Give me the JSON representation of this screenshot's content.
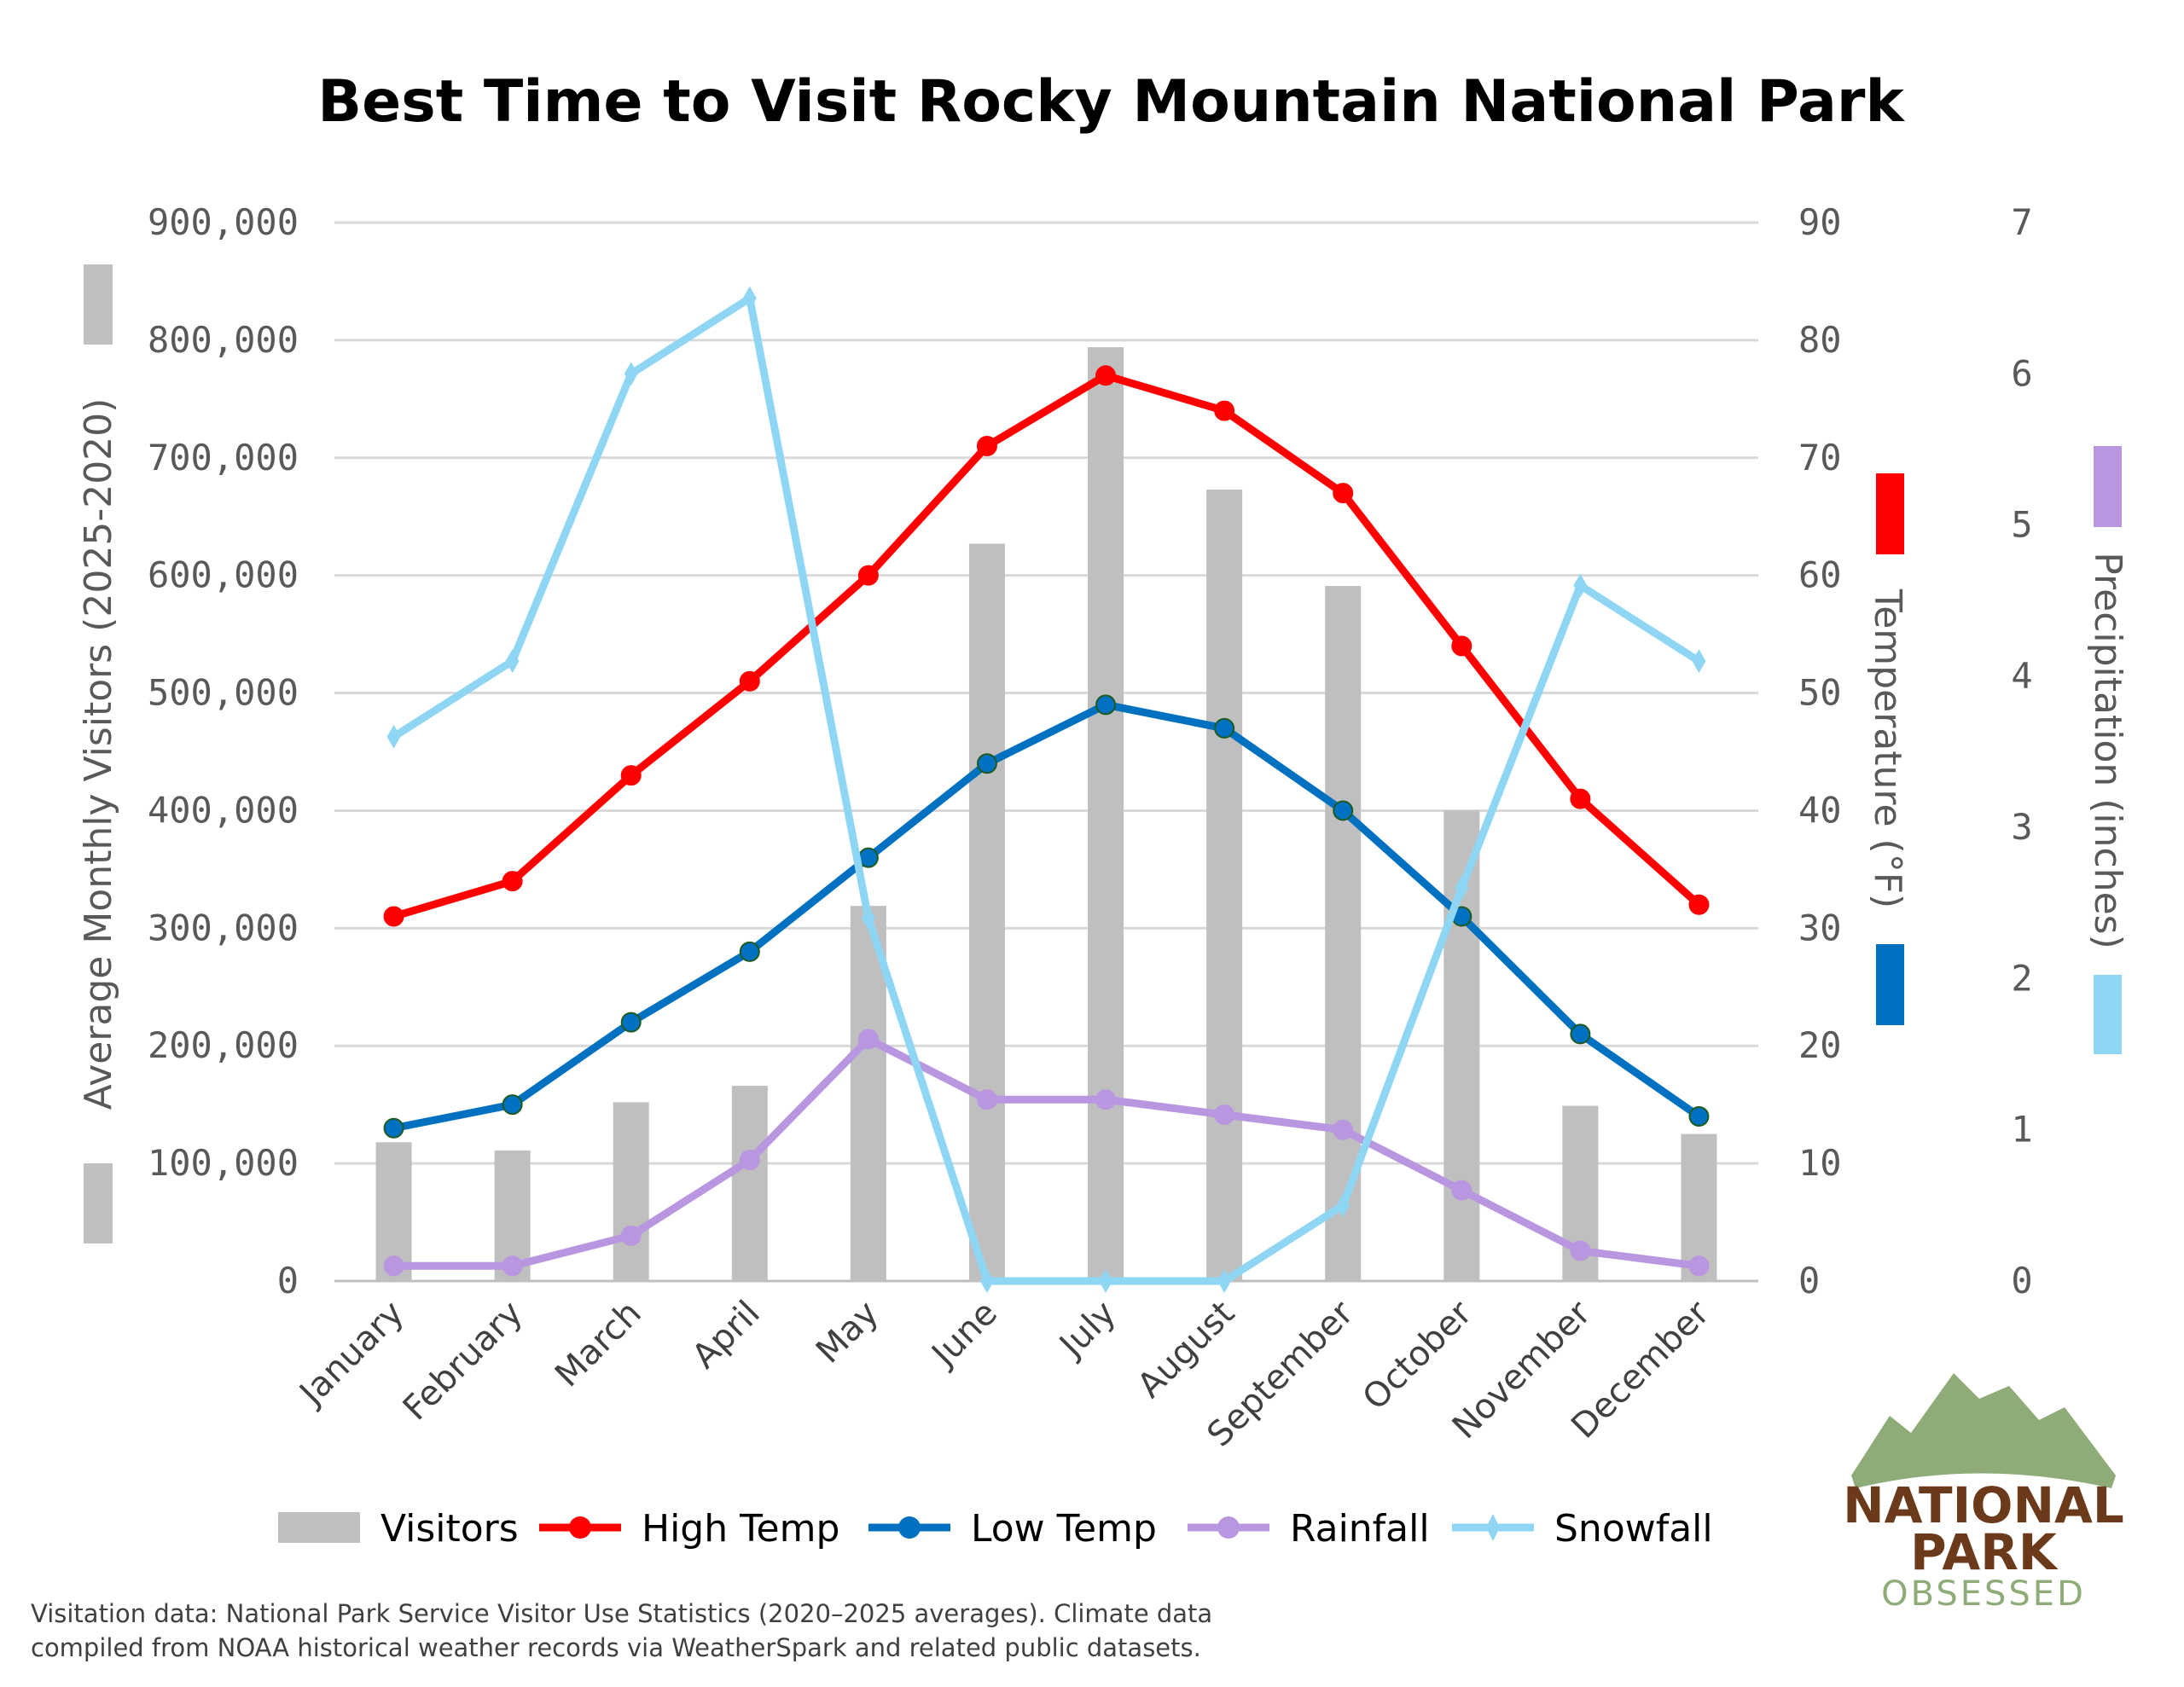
{
  "chart_data": {
    "type": "bar+line",
    "title": "Best Time to Visit Rocky Mountain National Park",
    "categories": [
      "January",
      "February",
      "March",
      "April",
      "May",
      "June",
      "July",
      "August",
      "September",
      "October",
      "November",
      "December"
    ],
    "axes": {
      "y_left": {
        "label": "Average Monthly Visitors (2025-2020)",
        "range": [
          0,
          900000
        ],
        "ticks": [
          "0",
          "100,000",
          "200,000",
          "300,000",
          "400,000",
          "500,000",
          "600,000",
          "700,000",
          "800,000",
          "900,000"
        ]
      },
      "y_temp": {
        "label": "Temperature (°F)",
        "range": [
          0,
          90
        ],
        "ticks": [
          "0",
          "10",
          "20",
          "30",
          "40",
          "50",
          "60",
          "70",
          "80",
          "90"
        ]
      },
      "y_precip": {
        "label": "Precipitation (inches)",
        "range": [
          0,
          7
        ],
        "ticks": [
          "0",
          "1",
          "2",
          "3",
          "4",
          "5",
          "6",
          "7"
        ]
      }
    },
    "grid": true,
    "legend_position": "bottom",
    "series": [
      {
        "name": "Visitors",
        "type": "bar",
        "axis": "y_left",
        "color": "#bfbfbf",
        "values": [
          118000,
          111000,
          152000,
          166000,
          319000,
          627000,
          794000,
          673000,
          591000,
          400000,
          149000,
          125000
        ]
      },
      {
        "name": "High Temp",
        "type": "line",
        "axis": "y_temp",
        "color": "#ff0000",
        "marker": "circle",
        "values": [
          31,
          34,
          43,
          51,
          60,
          71,
          77,
          74,
          67,
          54,
          41,
          32
        ]
      },
      {
        "name": "Low Temp",
        "type": "line",
        "axis": "y_temp",
        "color": "#0070c0",
        "marker": "circle",
        "values": [
          13,
          15,
          22,
          28,
          36,
          44,
          49,
          47,
          40,
          31,
          21,
          14
        ]
      },
      {
        "name": "Rainfall",
        "type": "line",
        "axis": "y_precip",
        "color": "#b996e0",
        "marker": "circle",
        "values": [
          0.1,
          0.1,
          0.3,
          0.8,
          1.6,
          1.2,
          1.2,
          1.1,
          1.0,
          0.6,
          0.2,
          0.1
        ]
      },
      {
        "name": "Snowfall",
        "type": "line",
        "axis": "y_precip",
        "color": "#8fd6f5",
        "marker": "diamond",
        "values": [
          3.6,
          4.1,
          6.0,
          6.5,
          2.4,
          0,
          0,
          0,
          0.5,
          2.6,
          4.6,
          4.1
        ]
      }
    ],
    "footnote": [
      "Visitation data: National Park Service Visitor Use Statistics (2020–2025 averages). Climate data",
      "compiled from NOAA historical weather records via WeatherSpark and related public datasets."
    ]
  },
  "logo": {
    "line1": "NATIONAL",
    "line2": "PARK",
    "line3": "OBSESSED"
  }
}
